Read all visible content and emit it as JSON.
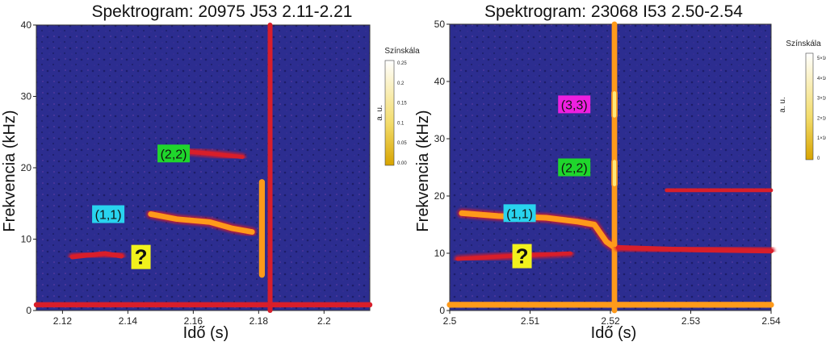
{
  "colors": {
    "background": "#2a2a8e",
    "ridge": "#d81e2a",
    "hot": "#ff9a1a",
    "peak": "#ffe87a",
    "tag_cyan": "#28d3ee",
    "tag_green": "#1fd62c",
    "tag_yellow": "#f2f21c",
    "tag_magenta": "#ee1fe0"
  },
  "chart_data": [
    {
      "type": "heatmap",
      "title": "Spektrogram: 20975 J53 2.11-2.21",
      "xlabel": "Idő (s)",
      "ylabel": "Frekvencia (kHz)",
      "xlim": [
        2.112,
        2.214
      ],
      "ylim": [
        0,
        40
      ],
      "xticks": [
        2.12,
        2.14,
        2.16,
        2.18,
        2.2
      ],
      "xtick_labels": [
        "2.12",
        "2.14",
        "2.16",
        "2.18",
        "2.2"
      ],
      "yticks": [
        0,
        10,
        20,
        30,
        40
      ],
      "ytick_labels": [
        "0",
        "10",
        "20",
        "30",
        "40"
      ],
      "colorbar": {
        "title": "Színskála",
        "unit": "a. u.",
        "ticks": [
          "0.25",
          "0.2",
          "0.15",
          "0.1",
          "0.05",
          "0.00"
        ]
      },
      "annotations": [
        {
          "text": "(2,2)",
          "x": 2.154,
          "y": 22,
          "color": "#1fd62c"
        },
        {
          "text": "(1,1)",
          "x": 2.134,
          "y": 13.5,
          "color": "#28d3ee"
        },
        {
          "text": "?",
          "x": 2.144,
          "y": 7.5,
          "color": "#f2f21c"
        }
      ],
      "features": [
        {
          "name": "(1,1)",
          "points": [
            [
              2.147,
              13.5
            ],
            [
              2.155,
              12.8
            ],
            [
              2.165,
              12.4
            ],
            [
              2.172,
              11.5
            ],
            [
              2.178,
              11.0
            ]
          ],
          "level": 0.75
        },
        {
          "name": "?",
          "points": [
            [
              2.123,
              7.5
            ],
            [
              2.133,
              8.0
            ],
            [
              2.138,
              7.6
            ]
          ],
          "level": 0.55
        },
        {
          "name": "crash",
          "points": [
            [
              2.1835,
              0
            ],
            [
              2.1835,
              40
            ]
          ],
          "level": 0.6
        },
        {
          "name": "crash-low",
          "points": [
            [
              2.181,
              5
            ],
            [
              2.181,
              18
            ]
          ],
          "level": 0.85
        },
        {
          "name": "(2,2)",
          "points": [
            [
              2.152,
              22.5
            ],
            [
              2.165,
              22
            ],
            [
              2.175,
              21.5
            ]
          ],
          "level": 0.4
        },
        {
          "name": "baseline",
          "points": [
            [
              2.112,
              0.8
            ],
            [
              2.214,
              0.8
            ]
          ],
          "level": 0.7
        }
      ]
    },
    {
      "type": "heatmap",
      "title": "Spektrogram: 23068 I53 2.50-2.54",
      "xlabel": "Idő (s)",
      "ylabel": "Frekvencia (kHz)",
      "xlim": [
        2.5,
        2.54
      ],
      "ylim": [
        0,
        50
      ],
      "xticks": [
        2.5,
        2.51,
        2.52,
        2.53,
        2.54
      ],
      "xtick_labels": [
        "2.5",
        "2.51",
        "2.52",
        "2.53",
        "2.54"
      ],
      "yticks": [
        0,
        10,
        20,
        30,
        40,
        50
      ],
      "ytick_labels": [
        "0",
        "10",
        "20",
        "30",
        "40",
        "50"
      ],
      "colorbar": {
        "title": "Színskála",
        "unit": "a. u.",
        "ticks": [
          "5×10⁵",
          "4×10⁵",
          "3×10⁵",
          "2×10⁵",
          "1×10⁵",
          "0"
        ]
      },
      "annotations": [
        {
          "text": "(3,3)",
          "x": 2.5155,
          "y": 36,
          "color": "#ee1fe0"
        },
        {
          "text": "(2,2)",
          "x": 2.5155,
          "y": 25,
          "color": "#1fd62c"
        },
        {
          "text": "(1,1)",
          "x": 2.5087,
          "y": 17,
          "color": "#28d3ee"
        },
        {
          "text": "?",
          "x": 2.509,
          "y": 9.5,
          "color": "#f2f21c"
        }
      ],
      "features": [
        {
          "name": "(1,1)",
          "points": [
            [
              2.5015,
              17
            ],
            [
              2.506,
              16.5
            ],
            [
              2.512,
              16.2
            ],
            [
              2.516,
              15.5
            ],
            [
              2.518,
              15.0
            ],
            [
              2.5195,
              12
            ],
            [
              2.5205,
              11
            ]
          ],
          "level": 0.8
        },
        {
          "name": "crash",
          "points": [
            [
              2.5205,
              0
            ],
            [
              2.5205,
              50
            ]
          ],
          "level": 0.75
        },
        {
          "name": "(3,3)",
          "points": [
            [
              2.5205,
              38
            ],
            [
              2.5205,
              34
            ]
          ],
          "level": 0.95
        },
        {
          "name": "(2,2)",
          "points": [
            [
              2.5205,
              26
            ],
            [
              2.5205,
              22
            ]
          ],
          "level": 0.95
        },
        {
          "name": "post-crash",
          "points": [
            [
              2.521,
              11
            ],
            [
              2.53,
              10.6
            ],
            [
              2.54,
              10.4
            ]
          ],
          "level": 0.6
        },
        {
          "name": "tail",
          "points": [
            [
              2.527,
              21
            ],
            [
              2.54,
              21
            ]
          ],
          "level": 0.35
        },
        {
          "name": "?",
          "points": [
            [
              2.501,
              9
            ],
            [
              2.507,
              9.5
            ],
            [
              2.515,
              10
            ]
          ],
          "level": 0.35
        },
        {
          "name": "baseline",
          "points": [
            [
              2.5,
              1
            ],
            [
              2.54,
              1
            ]
          ],
          "level": 0.85
        }
      ]
    }
  ]
}
